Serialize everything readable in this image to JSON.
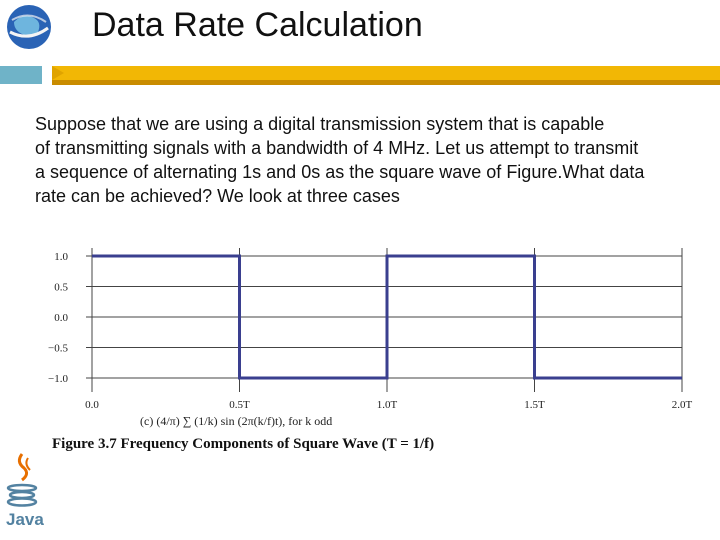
{
  "slide": {
    "title": "Data Rate Calculation",
    "body_lines": [
      "Suppose that we are using a digital transmission system that is capable",
      "of transmitting signals with a bandwidth of 4 MHz. Let us attempt to transmit",
      "a sequence of alternating 1s and 0s as the square wave of Figure.What data",
      "rate can be achieved? We look at three cases"
    ],
    "figure_caption": "Figure 3.7 Frequency Components of Square Wave (T = 1/f)",
    "figure_formula": "(c) (4/π) ∑ (1/k) sin (2π(k/f)t),     for k odd",
    "java_label": "Java"
  },
  "colors": {
    "wave": "#3a3f8f",
    "grid": "#444444",
    "accent": "#f2b705",
    "teal": "#6fb3c8"
  },
  "icons": {
    "top_left": "globe-logo-icon",
    "bottom_left": "java-logo-icon"
  },
  "chart_data": {
    "type": "line",
    "title": "",
    "xlabel": "",
    "ylabel": "",
    "x_ticks": [
      "0.0",
      "0.5T",
      "1.0T",
      "1.5T",
      "2.0T"
    ],
    "y_ticks": [
      "1.0",
      "0.5",
      "0.0",
      "−0.5",
      "−1.0"
    ],
    "xlim": [
      0,
      2
    ],
    "ylim": [
      -1,
      1
    ],
    "grid": true,
    "series": [
      {
        "x": [
          0,
          0.5,
          0.5,
          1.0,
          1.0,
          1.5,
          1.5,
          2.0
        ],
        "y": [
          1,
          1,
          -1,
          -1,
          1,
          1,
          -1,
          -1
        ]
      }
    ]
  }
}
